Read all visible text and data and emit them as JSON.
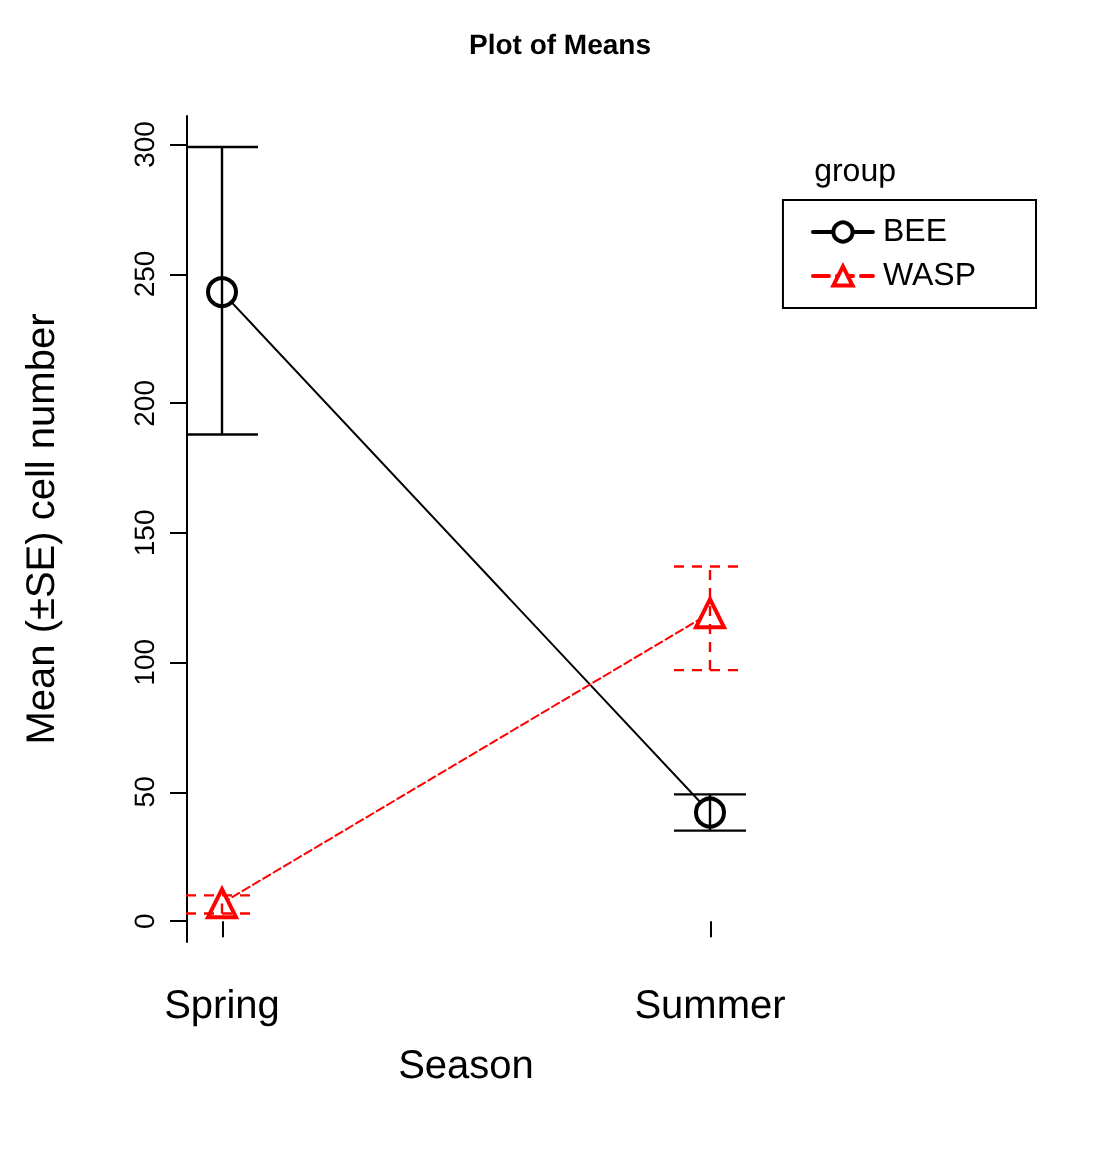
{
  "chart_data": {
    "type": "line",
    "title": "Plot of Means",
    "xlabel": "Season",
    "ylabel": "Mean (±SE) cell number",
    "legend_title": "group",
    "categories": [
      "Spring",
      "Summer"
    ],
    "series": [
      {
        "name": "BEE",
        "color": "#000000",
        "values": [
          243,
          42
        ],
        "errors": [
          [
            188,
            299
          ],
          [
            35,
            49
          ]
        ],
        "marker": "circle",
        "line_style": "solid"
      },
      {
        "name": "WASP",
        "color": "#ff0000",
        "values": [
          7,
          119
        ],
        "errors": [
          [
            3,
            10
          ],
          [
            97,
            137
          ]
        ],
        "marker": "triangle",
        "line_style": "dashed"
      }
    ],
    "ylim": [
      -8,
      311
    ],
    "yticks": [
      0,
      50,
      100,
      150,
      200,
      250,
      300
    ],
    "grid": false,
    "legend": "top right"
  }
}
